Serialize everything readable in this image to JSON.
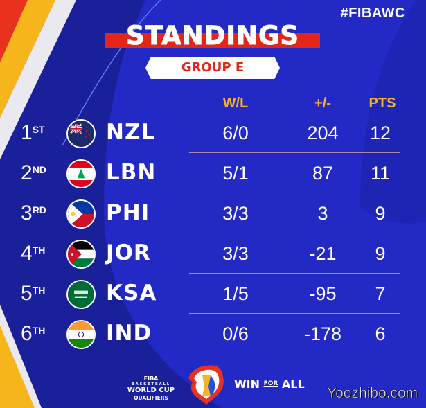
{
  "hashtag": "#FIBAWC",
  "title": "STANDINGS",
  "group": "GROUP E",
  "headers": {
    "wl": "W/L",
    "diff": "+/-",
    "pts": "PTS"
  },
  "rows": [
    {
      "rank": "1",
      "suffix": "ST",
      "code": "NZL",
      "wl": "6/0",
      "diff": "204",
      "pts": "12"
    },
    {
      "rank": "2",
      "suffix": "ND",
      "code": "LBN",
      "wl": "5/1",
      "diff": "87",
      "pts": "11"
    },
    {
      "rank": "3",
      "suffix": "RD",
      "code": "PHI",
      "wl": "3/3",
      "diff": "3",
      "pts": "9"
    },
    {
      "rank": "4",
      "suffix": "TH",
      "code": "JOR",
      "wl": "3/3",
      "diff": "-21",
      "pts": "9"
    },
    {
      "rank": "5",
      "suffix": "TH",
      "code": "KSA",
      "wl": "1/5",
      "diff": "-95",
      "pts": "7"
    },
    {
      "rank": "6",
      "suffix": "TH",
      "code": "IND",
      "wl": "0/6",
      "diff": "-178",
      "pts": "6"
    }
  ],
  "footer": {
    "fiba": "FIBA",
    "basketball": "BASKETBALL",
    "world_cup": "WORLD CUP",
    "qualifiers": "QUALIFIERS",
    "slogan_1": "WIN",
    "slogan_for": "FOR",
    "slogan_2": "ALL"
  },
  "watermark": "Yoozhibo.com",
  "colors": {
    "background": "#1c22a8",
    "accent_red": "#e32619",
    "accent_yellow": "#f9b223"
  }
}
